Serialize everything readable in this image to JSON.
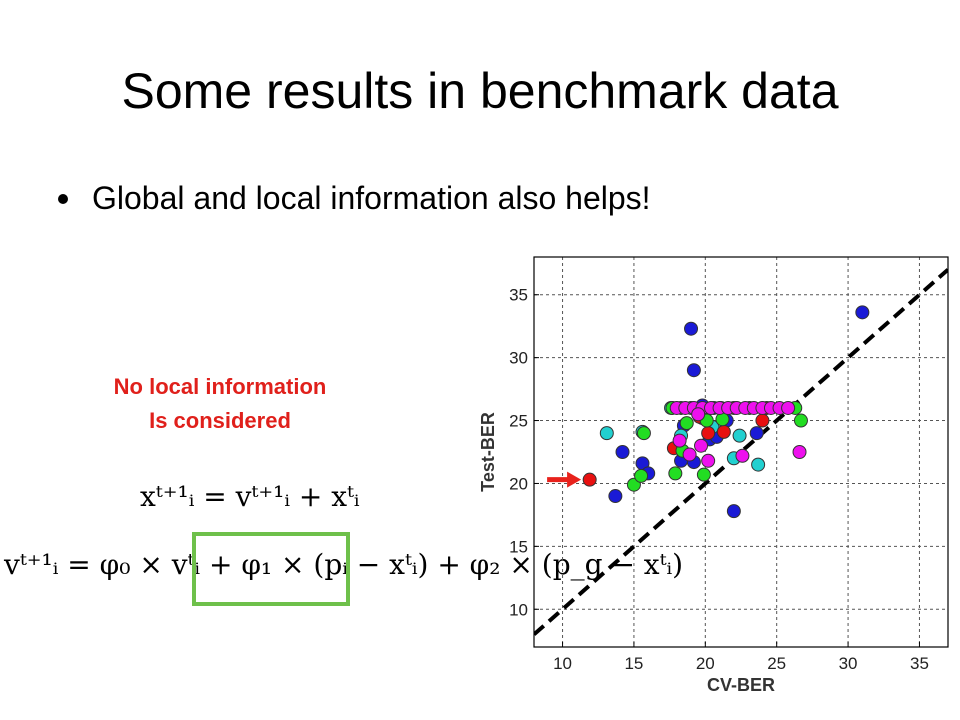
{
  "slide": {
    "title": "Some results in benchmark data",
    "bullet": "Global and local information also helps!",
    "note_line1": "No local information",
    "note_line2": "Is considered",
    "equation1": "xᵗ⁺¹ᵢ = vᵗ⁺¹ᵢ + xᵗᵢ",
    "equation2": "vᵗ⁺¹ᵢ = φ₀ × vᵗᵢ + φ₁ × (pᵢ − xᵗᵢ) + φ₂ × (p_g − xᵗᵢ)"
  },
  "colors": {
    "note_text": "#e0201b",
    "highlight_box": "#6ec04a",
    "arrow": "#e8221c"
  },
  "chart_data": {
    "type": "scatter",
    "xlabel": "CV-BER",
    "ylabel": "Test-BER",
    "xlim": [
      8,
      37
    ],
    "ylim": [
      7,
      38
    ],
    "xticks": [
      10,
      15,
      20,
      25,
      30,
      35
    ],
    "yticks": [
      10,
      15,
      20,
      25,
      30,
      35
    ],
    "grid": true,
    "diagonal_line": {
      "style": "dashed",
      "from": [
        8,
        8
      ],
      "to": [
        37,
        37
      ]
    },
    "arrow_marker": {
      "at": [
        12,
        20.3
      ]
    },
    "series": [
      {
        "color": "#1a1ad6",
        "points": [
          [
            19,
            32.3
          ],
          [
            19.2,
            29
          ],
          [
            31,
            33.6
          ],
          [
            13.7,
            19
          ],
          [
            14.2,
            22.5
          ],
          [
            15.6,
            21.6
          ],
          [
            16,
            20.8
          ],
          [
            18.3,
            21.8
          ],
          [
            19.2,
            21.7
          ],
          [
            20.3,
            23.5
          ],
          [
            20.8,
            23.7
          ],
          [
            21.5,
            25
          ],
          [
            22,
            17.8
          ],
          [
            23.6,
            24
          ],
          [
            18.5,
            24.6
          ],
          [
            19.8,
            26.2
          ],
          [
            20.6,
            26
          ],
          [
            21.1,
            26
          ]
        ]
      },
      {
        "color": "#22d0d0",
        "points": [
          [
            13.1,
            24
          ],
          [
            15.6,
            24.1
          ],
          [
            18.3,
            23.8
          ],
          [
            19.8,
            25.2
          ],
          [
            20.5,
            24.5
          ],
          [
            22,
            22
          ],
          [
            23.7,
            21.5
          ],
          [
            22.4,
            23.8
          ],
          [
            17.6,
            26
          ],
          [
            19,
            26
          ]
        ]
      },
      {
        "color": "#e81010",
        "points": [
          [
            11.9,
            20.3
          ],
          [
            17.8,
            22.8
          ],
          [
            19.6,
            25.3
          ],
          [
            20.2,
            24
          ],
          [
            21.3,
            24.1
          ],
          [
            24,
            25
          ],
          [
            24.3,
            26
          ],
          [
            22,
            26
          ]
        ]
      },
      {
        "color": "#22dd22",
        "points": [
          [
            15,
            19.9
          ],
          [
            15.5,
            20.6
          ],
          [
            15.7,
            24
          ],
          [
            17.9,
            20.8
          ],
          [
            18.4,
            22.6
          ],
          [
            18.7,
            24.8
          ],
          [
            19.9,
            20.7
          ],
          [
            20.1,
            25
          ],
          [
            21.2,
            25.1
          ],
          [
            26.7,
            25
          ],
          [
            17.7,
            26
          ],
          [
            18.3,
            26
          ],
          [
            23.1,
            26
          ],
          [
            26.3,
            26
          ]
        ]
      },
      {
        "color": "#ee10ee",
        "points": [
          [
            18,
            26
          ],
          [
            18.6,
            26
          ],
          [
            19.2,
            26
          ],
          [
            19.8,
            26
          ],
          [
            20.4,
            26
          ],
          [
            21,
            26
          ],
          [
            21.6,
            26
          ],
          [
            22.2,
            26
          ],
          [
            22.8,
            26
          ],
          [
            23.4,
            26
          ],
          [
            24,
            26
          ],
          [
            24.6,
            26
          ],
          [
            25.2,
            26
          ],
          [
            25.8,
            26
          ],
          [
            18.2,
            23.4
          ],
          [
            18.9,
            22.3
          ],
          [
            19.7,
            23
          ],
          [
            20.2,
            21.8
          ],
          [
            22.6,
            22.2
          ],
          [
            26.6,
            22.5
          ],
          [
            19.5,
            25.5
          ]
        ]
      }
    ]
  }
}
